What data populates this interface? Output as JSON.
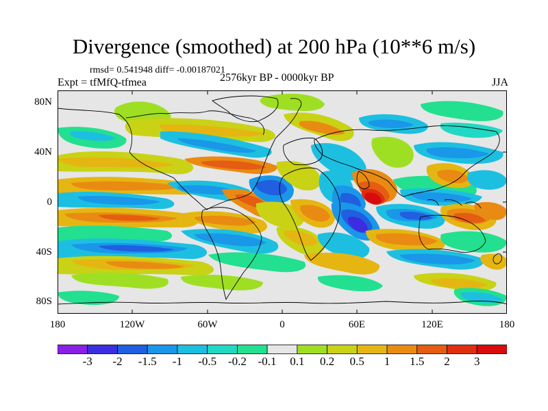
{
  "title": "Divergence (smoothed) at 200 hPa (10**6 m/s)",
  "stats": "rmsd= 0.541948 diff= -0.00187021",
  "experiment": "Expt = tfMfQ-tfmea",
  "period": "2576kyr BP - 0000kyr BP",
  "season": "JJA",
  "lat_labels": [
    "80N",
    "40N",
    "0",
    "40S",
    "80S"
  ],
  "lon_labels": [
    "180",
    "120W",
    "60W",
    "0",
    "60E",
    "120E",
    "180"
  ],
  "colorbar": {
    "labels": [
      "-3",
      "-2",
      "-1.5",
      "-1",
      "-0.5",
      "-0.2",
      "-0.1",
      "0.1",
      "0.2",
      "0.5",
      "1",
      "1.5",
      "2",
      "3"
    ],
    "colors": [
      "#8a1fe6",
      "#3b2de0",
      "#1f5fe0",
      "#1a97e8",
      "#1dbfe0",
      "#20d8c4",
      "#22e08f",
      "#e6e6e6",
      "#9fdf23",
      "#c9d215",
      "#e5b612",
      "#e98b12",
      "#e45d12",
      "#e02e10",
      "#d80c0c"
    ]
  }
}
